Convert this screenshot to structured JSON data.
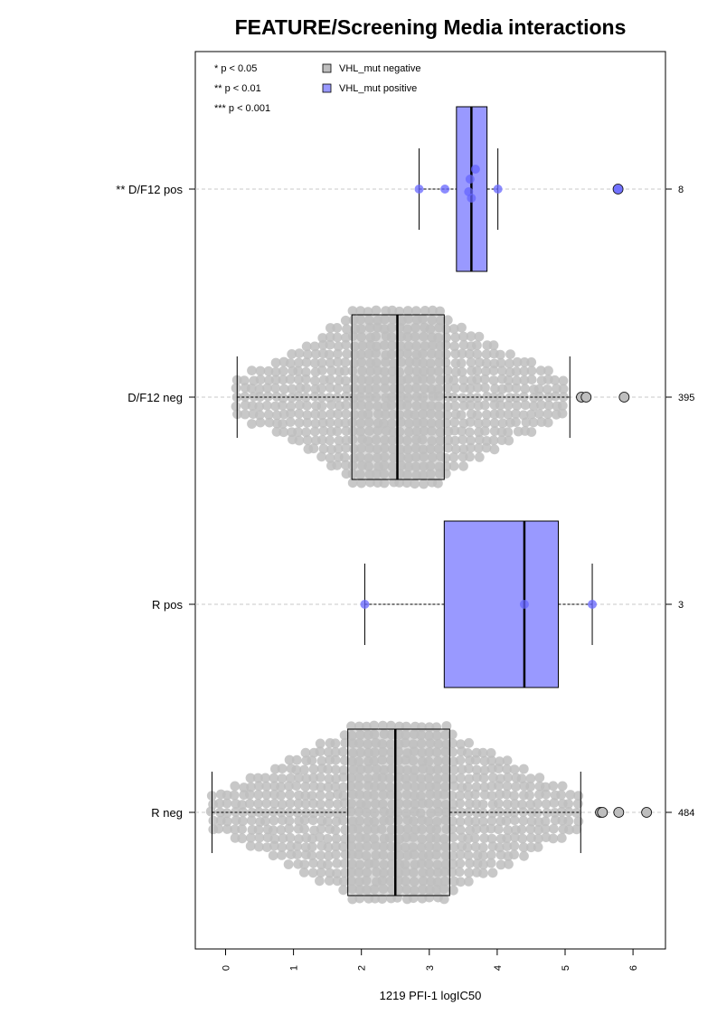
{
  "chart_data": {
    "type": "box",
    "title": "FEATURE/Screening Media interactions",
    "xlabel": "1219 PFI-1 logIC50",
    "xlim": [
      -0.45,
      6.5
    ],
    "x_ticks": [
      "0",
      "1",
      "2",
      "3",
      "4",
      "5",
      "6"
    ],
    "grid": "horizontal dashed at each group",
    "legend_position": "top-left",
    "significance_legend": [
      "* p < 0.05",
      "** p < 0.01",
      "*** p < 0.001"
    ],
    "legend": [
      {
        "label": "VHL_mut negative",
        "color": "#bebebe"
      },
      {
        "label": "VHL_mut positive",
        "color": "#9999ff"
      }
    ],
    "groups": [
      {
        "label": "** D/F12 pos",
        "n": "8",
        "status": "positive",
        "box": {
          "whisker_low": 2.85,
          "q1": 3.4,
          "median": 3.62,
          "q3": 3.85,
          "whisker_high": 4.01
        },
        "outliers": [
          5.78
        ],
        "points": [
          2.85,
          3.23,
          3.58,
          3.6,
          3.62,
          3.68,
          4.01,
          5.78
        ]
      },
      {
        "label": "D/F12 neg",
        "n": "395",
        "status": "negative",
        "box": {
          "whisker_low": 0.17,
          "q1": 1.86,
          "median": 2.53,
          "q3": 3.22,
          "whisker_high": 5.07
        },
        "outliers": [
          5.24,
          5.31,
          5.87
        ],
        "points": []
      },
      {
        "label": "R pos",
        "n": "3",
        "status": "positive",
        "box": {
          "whisker_low": 2.05,
          "q1": 3.22,
          "median": 4.4,
          "q3": 4.9,
          "whisker_high": 5.4
        },
        "outliers": [],
        "points": [
          2.05,
          4.4,
          5.4
        ]
      },
      {
        "label": "R neg",
        "n": "484",
        "status": "negative",
        "box": {
          "whisker_low": -0.2,
          "q1": 1.8,
          "median": 2.5,
          "q3": 3.3,
          "whisker_high": 5.23
        },
        "outliers": [
          5.52,
          5.55,
          5.79,
          6.2
        ],
        "points": []
      }
    ]
  }
}
